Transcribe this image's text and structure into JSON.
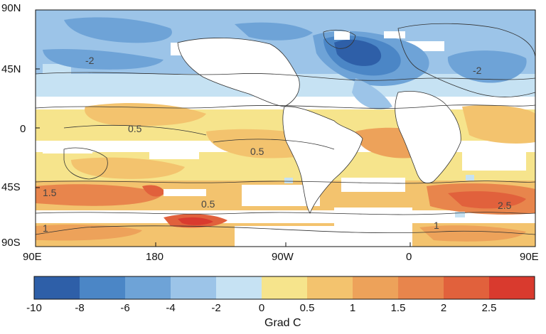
{
  "map": {
    "lat_labels": [
      "90N",
      "45N",
      "0",
      "45S",
      "90S"
    ],
    "lon_labels": [
      "90E",
      "180",
      "90W",
      "0",
      "90E"
    ],
    "contour_labels": [
      "0.5",
      "0.5",
      "0.5",
      "1.5",
      "1",
      "2.5",
      "-2",
      "-2",
      "1"
    ]
  },
  "colorbar": {
    "ticks": [
      "-10",
      "-8",
      "-6",
      "-4",
      "-2",
      "0",
      "0.5",
      "1",
      "1.5",
      "2",
      "2.5"
    ],
    "colors": [
      "#2e5fa8",
      "#4b86c6",
      "#6ea3d7",
      "#9cc4e8",
      "#c6e2f3",
      "#f6e48c",
      "#f3c36e",
      "#eda25a",
      "#e8854c",
      "#e1613c",
      "#d93a2e"
    ],
    "unit_label": "Grad C"
  }
}
